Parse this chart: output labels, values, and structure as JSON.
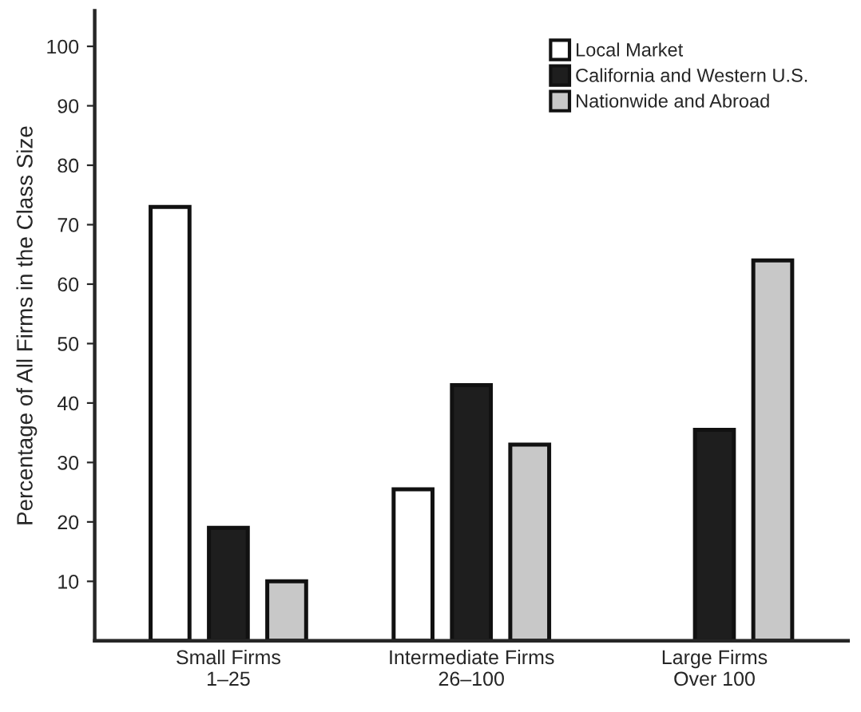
{
  "chart_data": {
    "type": "bar",
    "categories": [
      "Small Firms\n1–25",
      "Intermediate Firms\n26–100",
      "Large Firms\nOver 100"
    ],
    "ylabel": "Percentage of All Firms in the Class Size",
    "ylim": [
      0,
      106
    ],
    "yticks": [
      10,
      20,
      30,
      40,
      50,
      60,
      70,
      80,
      90,
      100
    ],
    "series": [
      {
        "name": "Local Market",
        "color": "#ffffff",
        "values": [
          73,
          25.5,
          null
        ]
      },
      {
        "name": "California and Western U.S.",
        "color": "#1e1e1e",
        "values": [
          19,
          43,
          35.5
        ]
      },
      {
        "name": "Nationwide and Abroad",
        "color": "#c8c8c8",
        "values": [
          10,
          33,
          64
        ]
      }
    ],
    "legend": "top right",
    "grid": false
  }
}
